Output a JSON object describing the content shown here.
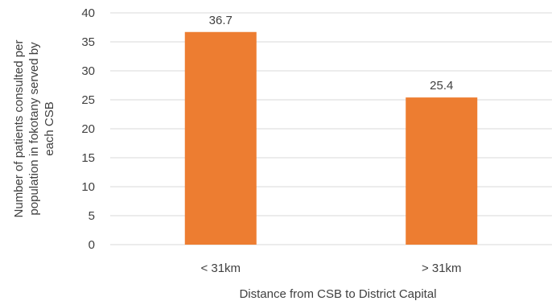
{
  "chart_data": {
    "type": "bar",
    "categories": [
      "< 31km",
      "> 31km"
    ],
    "values": [
      36.7,
      25.4
    ],
    "data_labels": [
      "36.7",
      "25.4"
    ],
    "title": "",
    "xlabel": "Distance from CSB to District Capital",
    "ylabel_lines": [
      "Number of patients consulted per",
      "population in fokotany served by",
      "each CSB"
    ],
    "ylim": [
      0,
      40
    ],
    "yticks": [
      "0",
      "5",
      "10",
      "15",
      "20",
      "25",
      "30",
      "35",
      "40"
    ],
    "grid": true,
    "legend": "none",
    "bar_color": "#ED7D31"
  }
}
